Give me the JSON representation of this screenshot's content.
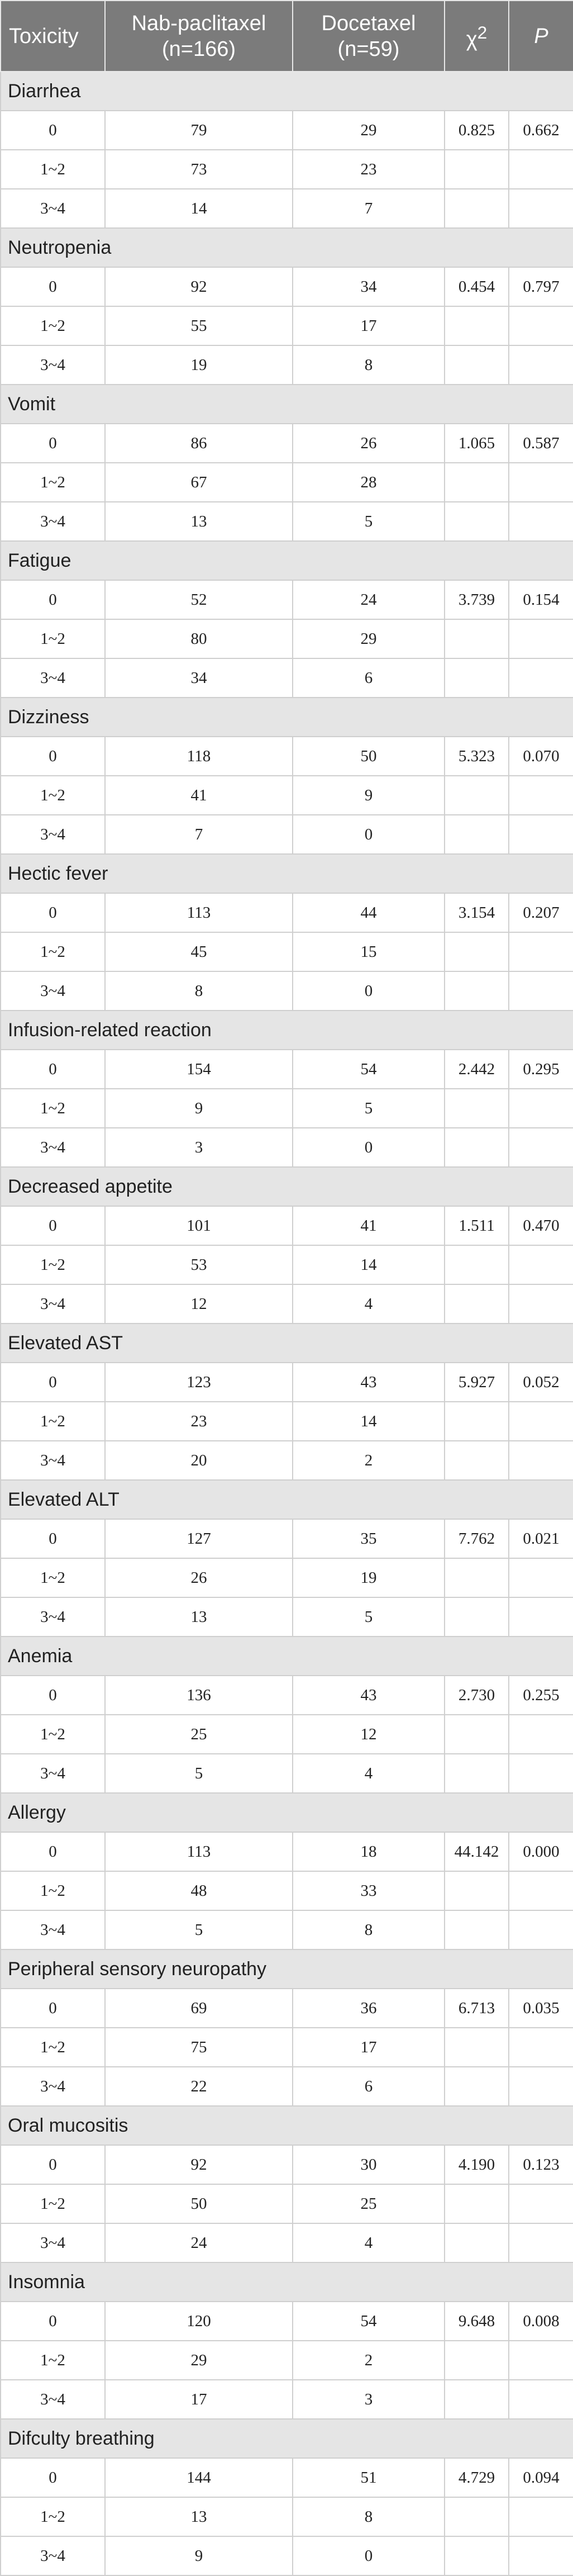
{
  "headers": {
    "toxicity": "Toxicity",
    "nab_line1": "Nab-paclitaxel",
    "nab_line2": "(n=166)",
    "doc_line1": "Docetaxel",
    "doc_line2": "(n=59)",
    "chi_base": "χ",
    "chi_sup": "2",
    "p": "P"
  },
  "groups": [
    {
      "name": "Diarrhea",
      "rows": [
        {
          "grade": "0",
          "nab": "79",
          "doc": "29",
          "chi2": "0.825",
          "p": "0.662"
        },
        {
          "grade": "1~2",
          "nab": "73",
          "doc": "23",
          "chi2": "",
          "p": ""
        },
        {
          "grade": "3~4",
          "nab": "14",
          "doc": "7",
          "chi2": "",
          "p": ""
        }
      ]
    },
    {
      "name": "Neutropenia",
      "rows": [
        {
          "grade": "0",
          "nab": "92",
          "doc": "34",
          "chi2": "0.454",
          "p": "0.797"
        },
        {
          "grade": "1~2",
          "nab": "55",
          "doc": "17",
          "chi2": "",
          "p": ""
        },
        {
          "grade": "3~4",
          "nab": "19",
          "doc": "8",
          "chi2": "",
          "p": ""
        }
      ]
    },
    {
      "name": "Vomit",
      "rows": [
        {
          "grade": "0",
          "nab": "86",
          "doc": "26",
          "chi2": "1.065",
          "p": "0.587"
        },
        {
          "grade": "1~2",
          "nab": "67",
          "doc": "28",
          "chi2": "",
          "p": ""
        },
        {
          "grade": "3~4",
          "nab": "13",
          "doc": "5",
          "chi2": "",
          "p": ""
        }
      ]
    },
    {
      "name": "Fatigue",
      "rows": [
        {
          "grade": "0",
          "nab": "52",
          "doc": "24",
          "chi2": "3.739",
          "p": "0.154"
        },
        {
          "grade": "1~2",
          "nab": "80",
          "doc": "29",
          "chi2": "",
          "p": ""
        },
        {
          "grade": "3~4",
          "nab": "34",
          "doc": "6",
          "chi2": "",
          "p": ""
        }
      ]
    },
    {
      "name": "Dizziness",
      "rows": [
        {
          "grade": "0",
          "nab": "118",
          "doc": "50",
          "chi2": "5.323",
          "p": "0.070"
        },
        {
          "grade": "1~2",
          "nab": "41",
          "doc": "9",
          "chi2": "",
          "p": ""
        },
        {
          "grade": "3~4",
          "nab": "7",
          "doc": "0",
          "chi2": "",
          "p": ""
        }
      ]
    },
    {
      "name": "Hectic fever",
      "rows": [
        {
          "grade": "0",
          "nab": "113",
          "doc": "44",
          "chi2": "3.154",
          "p": "0.207"
        },
        {
          "grade": "1~2",
          "nab": "45",
          "doc": "15",
          "chi2": "",
          "p": ""
        },
        {
          "grade": "3~4",
          "nab": "8",
          "doc": "0",
          "chi2": "",
          "p": ""
        }
      ]
    },
    {
      "name": "Infusion-related reaction",
      "rows": [
        {
          "grade": "0",
          "nab": "154",
          "doc": "54",
          "chi2": "2.442",
          "p": "0.295"
        },
        {
          "grade": "1~2",
          "nab": "9",
          "doc": "5",
          "chi2": "",
          "p": ""
        },
        {
          "grade": "3~4",
          "nab": "3",
          "doc": "0",
          "chi2": "",
          "p": ""
        }
      ]
    },
    {
      "name": "Decreased appetite",
      "rows": [
        {
          "grade": "0",
          "nab": "101",
          "doc": "41",
          "chi2": "1.511",
          "p": "0.470"
        },
        {
          "grade": "1~2",
          "nab": "53",
          "doc": "14",
          "chi2": "",
          "p": ""
        },
        {
          "grade": "3~4",
          "nab": "12",
          "doc": "4",
          "chi2": "",
          "p": ""
        }
      ]
    },
    {
      "name": "Elevated AST",
      "rows": [
        {
          "grade": "0",
          "nab": "123",
          "doc": "43",
          "chi2": "5.927",
          "p": "0.052"
        },
        {
          "grade": "1~2",
          "nab": "23",
          "doc": "14",
          "chi2": "",
          "p": ""
        },
        {
          "grade": "3~4",
          "nab": "20",
          "doc": "2",
          "chi2": "",
          "p": ""
        }
      ]
    },
    {
      "name": "Elevated ALT",
      "rows": [
        {
          "grade": "0",
          "nab": "127",
          "doc": "35",
          "chi2": "7.762",
          "p": "0.021"
        },
        {
          "grade": "1~2",
          "nab": "26",
          "doc": "19",
          "chi2": "",
          "p": ""
        },
        {
          "grade": "3~4",
          "nab": "13",
          "doc": "5",
          "chi2": "",
          "p": ""
        }
      ]
    },
    {
      "name": "Anemia",
      "rows": [
        {
          "grade": "0",
          "nab": "136",
          "doc": "43",
          "chi2": "2.730",
          "p": "0.255"
        },
        {
          "grade": "1~2",
          "nab": "25",
          "doc": "12",
          "chi2": "",
          "p": ""
        },
        {
          "grade": "3~4",
          "nab": "5",
          "doc": "4",
          "chi2": "",
          "p": ""
        }
      ]
    },
    {
      "name": "Allergy",
      "rows": [
        {
          "grade": "0",
          "nab": "113",
          "doc": "18",
          "chi2": "44.142",
          "p": "0.000"
        },
        {
          "grade": "1~2",
          "nab": "48",
          "doc": "33",
          "chi2": "",
          "p": ""
        },
        {
          "grade": "3~4",
          "nab": "5",
          "doc": "8",
          "chi2": "",
          "p": ""
        }
      ]
    },
    {
      "name": "Peripheral sensory neuropathy",
      "rows": [
        {
          "grade": "0",
          "nab": "69",
          "doc": "36",
          "chi2": "6.713",
          "p": "0.035"
        },
        {
          "grade": "1~2",
          "nab": "75",
          "doc": "17",
          "chi2": "",
          "p": ""
        },
        {
          "grade": "3~4",
          "nab": "22",
          "doc": "6",
          "chi2": "",
          "p": ""
        }
      ]
    },
    {
      "name": "Oral mucositis",
      "rows": [
        {
          "grade": "0",
          "nab": "92",
          "doc": "30",
          "chi2": "4.190",
          "p": "0.123"
        },
        {
          "grade": "1~2",
          "nab": "50",
          "doc": "25",
          "chi2": "",
          "p": ""
        },
        {
          "grade": "3~4",
          "nab": "24",
          "doc": "4",
          "chi2": "",
          "p": ""
        }
      ]
    },
    {
      "name": "Insomnia",
      "rows": [
        {
          "grade": "0",
          "nab": "120",
          "doc": "54",
          "chi2": "9.648",
          "p": "0.008"
        },
        {
          "grade": "1~2",
          "nab": "29",
          "doc": "2",
          "chi2": "",
          "p": ""
        },
        {
          "grade": "3~4",
          "nab": "17",
          "doc": "3",
          "chi2": "",
          "p": ""
        }
      ]
    },
    {
      "name": "Difculty breathing",
      "rows": [
        {
          "grade": "0",
          "nab": "144",
          "doc": "51",
          "chi2": "4.729",
          "p": "0.094"
        },
        {
          "grade": "1~2",
          "nab": "13",
          "doc": "8",
          "chi2": "",
          "p": ""
        },
        {
          "grade": "3~4",
          "nab": "9",
          "doc": "0",
          "chi2": "",
          "p": ""
        }
      ]
    }
  ]
}
